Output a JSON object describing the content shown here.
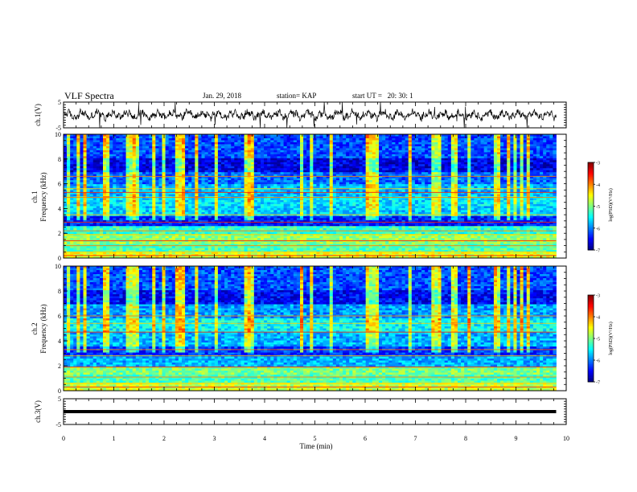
{
  "header": {
    "title": "VLF Spectra",
    "date": "Jan. 29, 2018",
    "station": "station= KAP",
    "start_ut": "start UT =   20: 30: 1"
  },
  "panels": {
    "ch1_wave_label": "ch.1(V)",
    "ch1_spec_label_a": "ch.1",
    "ch1_spec_label_b": "Frequency (kHz)",
    "ch2_spec_label_a": "ch.2",
    "ch2_spec_label_b": "Frequency (kHz)",
    "ch3_wave_label": "ch.3(V)",
    "colorbar_label": "log(PSD)(V²/Hz)"
  },
  "x_axis": {
    "label": "Time (min)"
  },
  "colors": {
    "spectrogram_scale": [
      "#00007f",
      "#0000ff",
      "#0080ff",
      "#00ffff",
      "#80ff80",
      "#ffff00",
      "#ff8000",
      "#ff0000",
      "#7f0000"
    ],
    "trace": "#000000"
  },
  "chart_data": [
    {
      "name": "ch1_waveform",
      "type": "line",
      "ylabel": "ch.1(V)",
      "ylim": [
        -5,
        5
      ],
      "yticks": [
        -5,
        5
      ],
      "xlim": [
        0,
        10
      ],
      "xrange_data": [
        0,
        9.8
      ],
      "mean": 0,
      "amplitude_approx": 1.5
    },
    {
      "name": "ch1_spectrogram",
      "type": "heatmap",
      "ylabel": "Frequency (kHz)",
      "ylim": [
        0,
        10
      ],
      "yticks": [
        0,
        2,
        4,
        6,
        8,
        10
      ],
      "xlim": [
        0,
        10
      ],
      "xrange_data": [
        0,
        9.8
      ],
      "colorbar": {
        "ticks": [
          -3,
          -4,
          -5,
          -6,
          -7
        ],
        "range": [
          -7,
          -3
        ]
      },
      "bands": [
        {
          "f": [
            0,
            0.5
          ],
          "level": -4.6
        },
        {
          "f": [
            0.5,
            1.2
          ],
          "level": -5.2
        },
        {
          "f": [
            1.2,
            1.9
          ],
          "level": -4.9
        },
        {
          "f": [
            1.9,
            2.6
          ],
          "level": -5.3
        },
        {
          "f": [
            2.6,
            3.4
          ],
          "level": -6.4
        },
        {
          "f": [
            3.4,
            4.2
          ],
          "level": -5.7
        },
        {
          "f": [
            4.2,
            5.0
          ],
          "level": -5.6
        },
        {
          "f": [
            5.0,
            6.0
          ],
          "level": -5.8
        },
        {
          "f": [
            6.0,
            7.0
          ],
          "level": -6.1
        },
        {
          "f": [
            7.0,
            8.0
          ],
          "level": -6.6
        },
        {
          "f": [
            8.0,
            10.0
          ],
          "level": -6.2
        }
      ],
      "lines_khz": [
        0.2,
        0.5,
        1.0,
        1.4,
        1.9,
        2.2,
        2.9,
        3.5,
        4.9,
        5.3,
        5.6,
        6.6
      ]
    },
    {
      "name": "ch2_spectrogram",
      "type": "heatmap",
      "ylabel": "Frequency (kHz)",
      "ylim": [
        0,
        10
      ],
      "yticks": [
        0,
        2,
        4,
        6,
        8,
        10
      ],
      "xlim": [
        0,
        10
      ],
      "xrange_data": [
        0,
        9.8
      ],
      "colorbar": {
        "ticks": [
          -3,
          -4,
          -5,
          -6,
          -7
        ],
        "range": [
          -7,
          -3
        ]
      },
      "bands": [
        {
          "f": [
            0,
            0.6
          ],
          "level": -4.7
        },
        {
          "f": [
            0.6,
            1.3
          ],
          "level": -5.2
        },
        {
          "f": [
            1.3,
            2.0
          ],
          "level": -5.0
        },
        {
          "f": [
            2.0,
            2.8
          ],
          "level": -5.8
        },
        {
          "f": [
            2.8,
            3.6
          ],
          "level": -6.3
        },
        {
          "f": [
            3.6,
            4.6
          ],
          "level": -5.8
        },
        {
          "f": [
            4.6,
            5.8
          ],
          "level": -5.5
        },
        {
          "f": [
            5.8,
            7.0
          ],
          "level": -5.9
        },
        {
          "f": [
            7.0,
            8.0
          ],
          "level": -6.5
        },
        {
          "f": [
            8.0,
            10.0
          ],
          "level": -6.2
        }
      ],
      "lines_khz": [
        0.3,
        0.6,
        1.1,
        1.9,
        2.8,
        3.3,
        4.7,
        5.4,
        6.0
      ]
    },
    {
      "name": "ch3_waveform",
      "type": "line",
      "ylabel": "ch.3(V)",
      "ylim": [
        -5,
        5
      ],
      "yticks": [
        -5,
        5
      ],
      "xlim": [
        0,
        10
      ],
      "xrange_data": [
        0,
        9.8
      ],
      "mean": 0,
      "amplitude_approx": 0.1
    }
  ],
  "x_ticks": [
    "0",
    "1",
    "2",
    "3",
    "4",
    "5",
    "6",
    "7",
    "8",
    "9",
    "10"
  ]
}
